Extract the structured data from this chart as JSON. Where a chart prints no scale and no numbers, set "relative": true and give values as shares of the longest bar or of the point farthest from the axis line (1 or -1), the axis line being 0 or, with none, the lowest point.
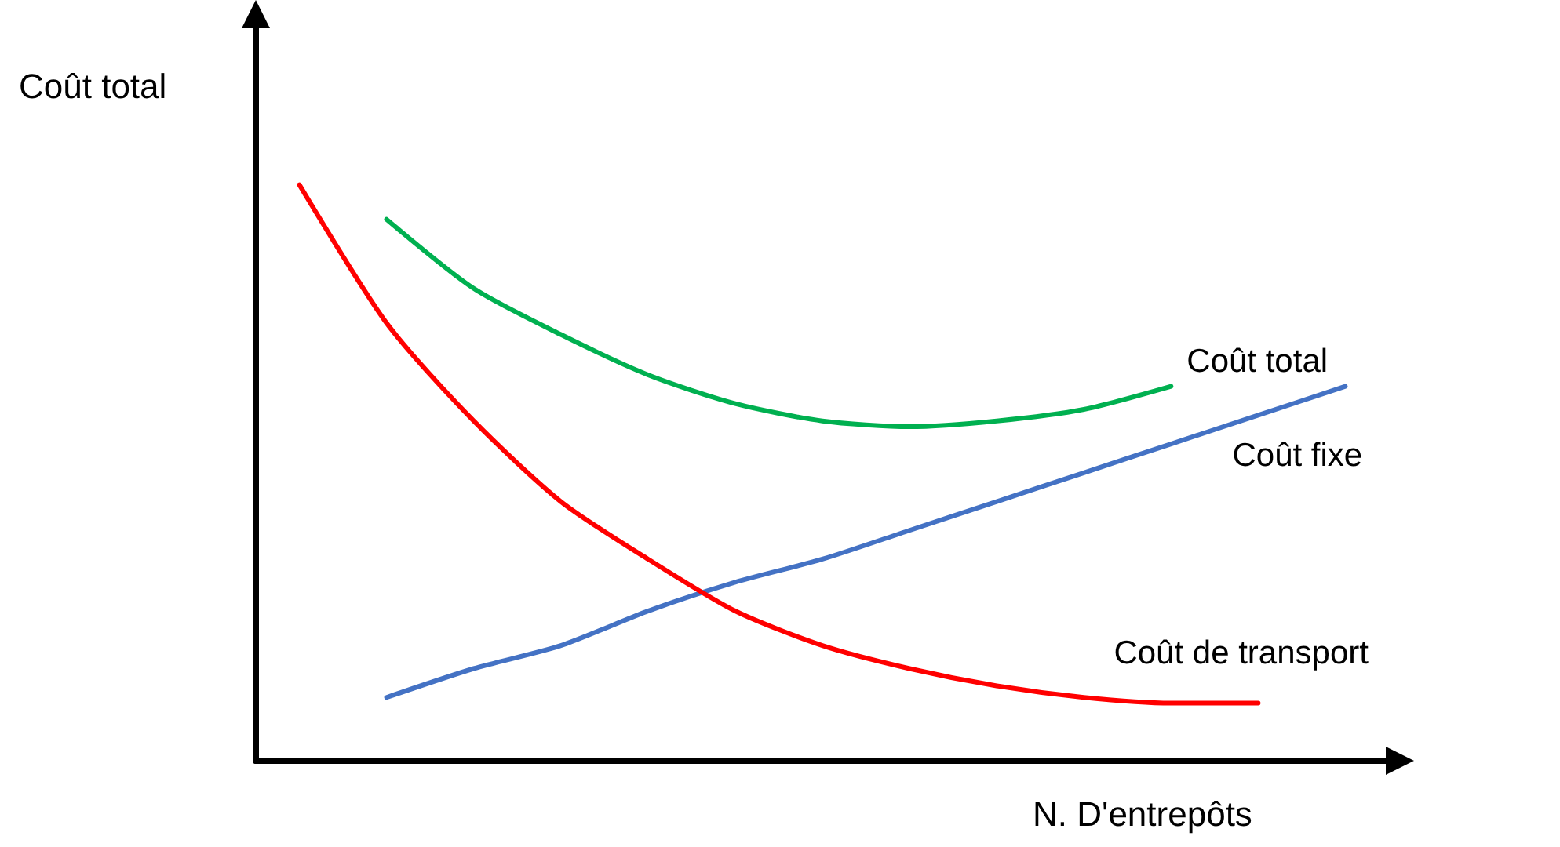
{
  "chart_data": {
    "type": "line",
    "xlabel": "N. D'entrepôts",
    "ylabel": "Coût total",
    "relative": true,
    "marker": "none",
    "legend": false,
    "categories": [
      null,
      null,
      null,
      null,
      null,
      null,
      null,
      null,
      null,
      null,
      null,
      null,
      null
    ],
    "series": [
      {
        "name": "Coût total",
        "color": "#00b050",
        "values": [
          null,
          0.94,
          0.82,
          0.74,
          0.67,
          0.62,
          0.59,
          0.58,
          0.59,
          0.61,
          0.65,
          null,
          null
        ]
      },
      {
        "name": "Coût fixe",
        "color": "#4472c4",
        "values": [
          null,
          0.11,
          0.16,
          0.2,
          0.26,
          0.31,
          0.35,
          0.4,
          0.45,
          0.5,
          0.55,
          0.6,
          0.65
        ]
      },
      {
        "name": "Coût de transport",
        "color": "#ff0000",
        "values": [
          1,
          0.76,
          0.59,
          0.45,
          0.35,
          0.26,
          0.2,
          0.16,
          0.13,
          0.11,
          0.1,
          0.1,
          null
        ]
      }
    ]
  }
}
